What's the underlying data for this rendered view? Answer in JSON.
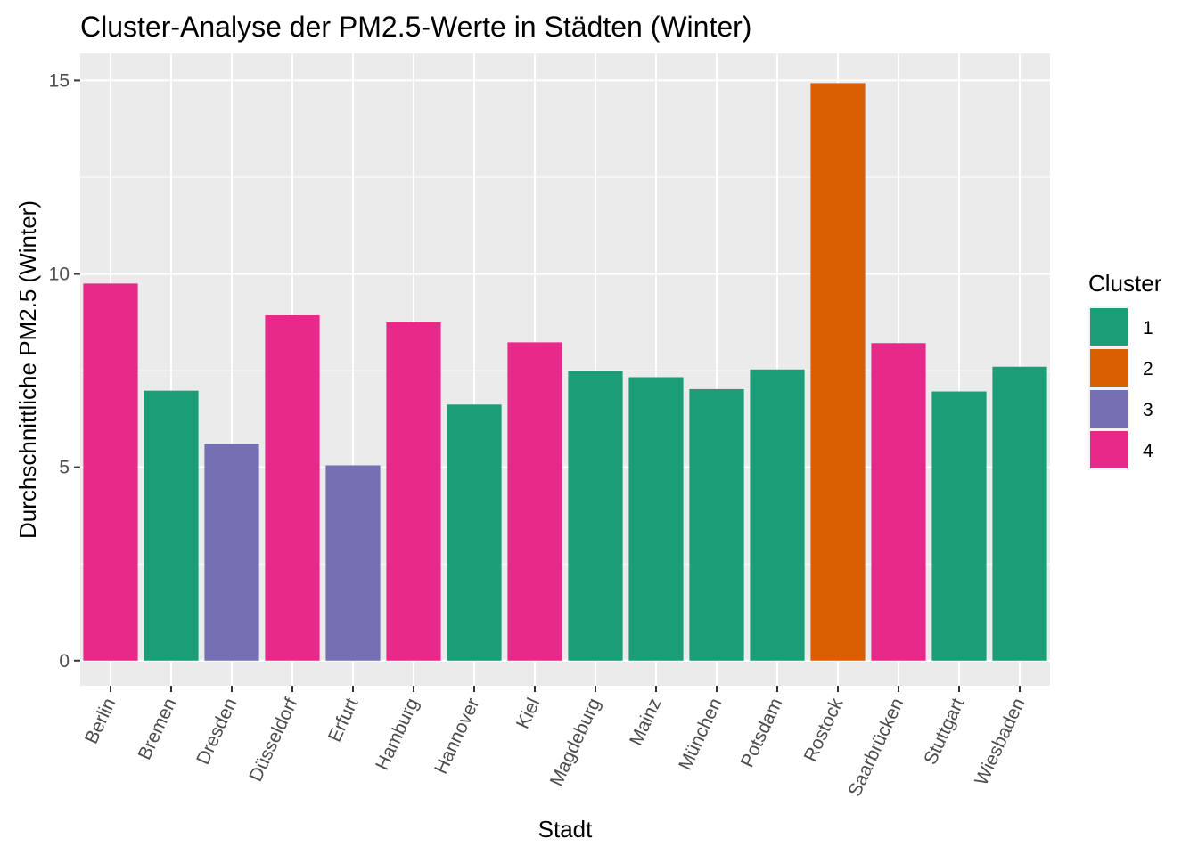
{
  "chart_data": {
    "type": "bar",
    "title": "Cluster-Analyse der PM2.5-Werte in Städten (Winter)",
    "xlabel": "Stadt",
    "ylabel": "Durchschnittliche PM2.5 (Winter)",
    "ylim": [
      -0.65,
      15.7
    ],
    "yticks": [
      0,
      5,
      10,
      15
    ],
    "grid": true,
    "legend": {
      "title": "Cluster",
      "position": "right",
      "entries": [
        {
          "label": "1",
          "color": "#1b9e77"
        },
        {
          "label": "2",
          "color": "#d95f02"
        },
        {
          "label": "3",
          "color": "#7570b3"
        },
        {
          "label": "4",
          "color": "#e7298a"
        }
      ]
    },
    "categories": [
      "Berlin",
      "Bremen",
      "Dresden",
      "Düsseldorf",
      "Erfurt",
      "Hamburg",
      "Hannover",
      "Kiel",
      "Magdeburg",
      "Mainz",
      "München",
      "Potsdam",
      "Rostock",
      "Saarbrücken",
      "Stuttgart",
      "Wiesbaden"
    ],
    "values": [
      9.75,
      6.98,
      5.61,
      8.93,
      5.05,
      8.75,
      6.62,
      8.23,
      7.49,
      7.33,
      7.02,
      7.53,
      14.93,
      8.21,
      6.96,
      7.6
    ],
    "clusters": [
      "4",
      "1",
      "3",
      "4",
      "3",
      "4",
      "1",
      "4",
      "1",
      "1",
      "1",
      "1",
      "2",
      "4",
      "1",
      "1"
    ]
  }
}
